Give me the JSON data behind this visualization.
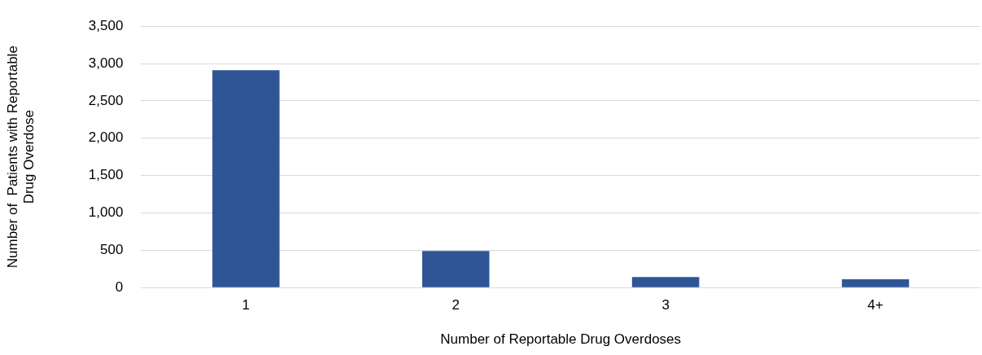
{
  "chart_data": {
    "type": "bar",
    "xlabel": "Number of Reportable Drug Overdoses",
    "ylabel": "Number of  Patients with Reportable\nDrug Overdose",
    "categories": [
      "1",
      "2",
      "3",
      "4+"
    ],
    "values": [
      2910,
      490,
      140,
      110
    ],
    "color": "#2f5597",
    "ylim": [
      0,
      3500
    ],
    "yticks": [
      0,
      500,
      {
        "value": 1000,
        "label": "1,000"
      },
      {
        "value": 1500,
        "label": "1,500"
      },
      {
        "value": 2000,
        "label": "2,000"
      },
      {
        "value": 2500,
        "label": "2,500"
      },
      {
        "value": 3000,
        "label": "3,000"
      },
      {
        "value": 3500,
        "label": "3,500"
      }
    ],
    "grid": "y",
    "legend": false
  }
}
